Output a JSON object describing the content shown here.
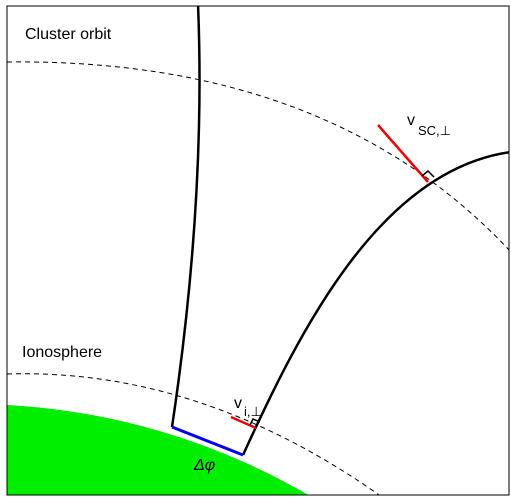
{
  "labels": {
    "cluster_orbit": "Cluster orbit",
    "ionosphere": "Ionosphere",
    "v_sc": {
      "symbol": "v",
      "subscript": "SC,⊥"
    },
    "v_i": {
      "symbol": "v",
      "subscript": "i,⊥"
    },
    "delta_phi": "Δφ"
  }
}
